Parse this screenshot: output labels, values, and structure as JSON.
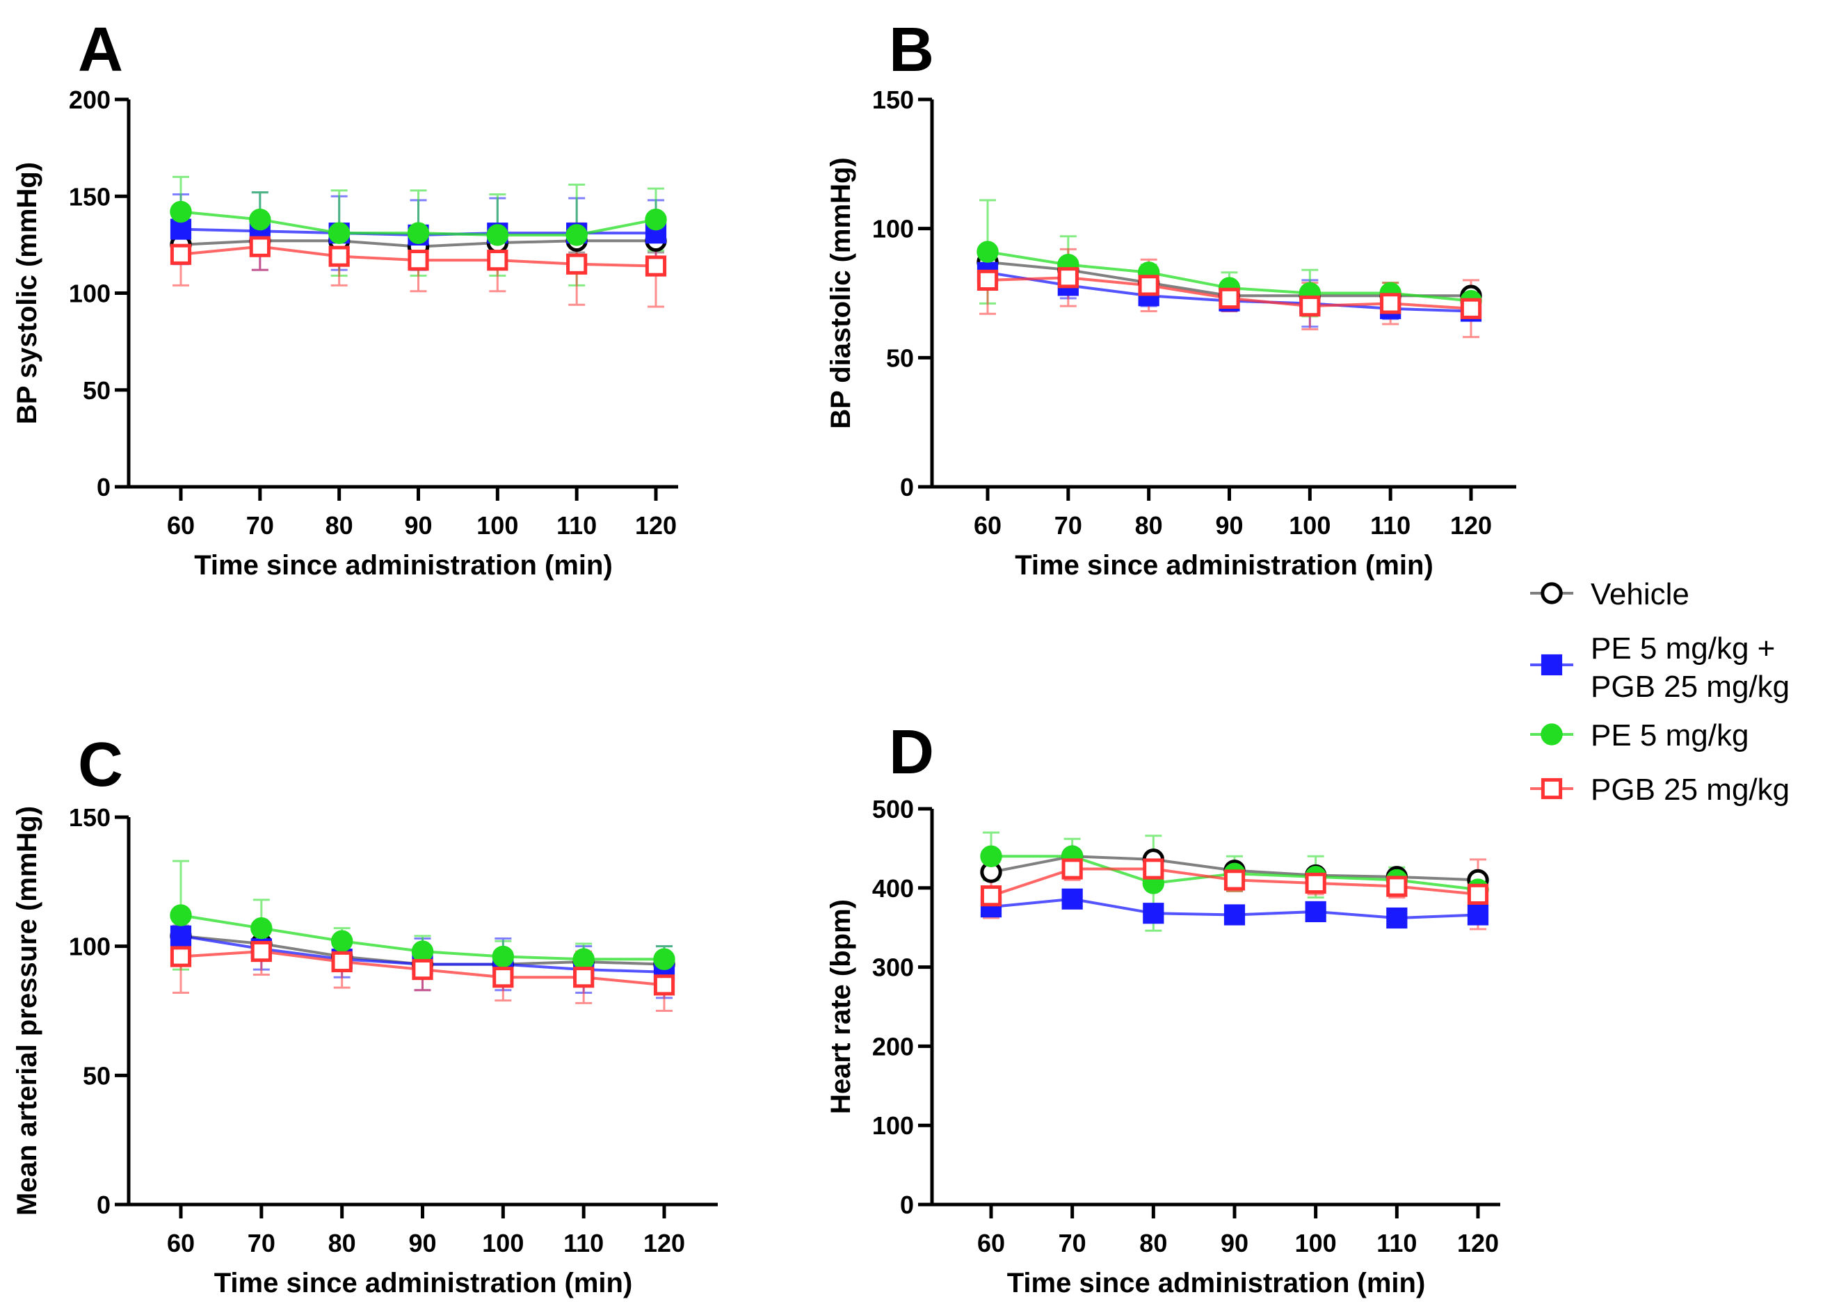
{
  "colors": {
    "vehicle": "#555555",
    "pe_pgb": "#1a1aff",
    "pe": "#22dd22",
    "pgb": "#ff3333",
    "axis": "#000000"
  },
  "legend": {
    "items": [
      {
        "key": "vehicle",
        "lines": [
          "Vehicle"
        ],
        "marker": "circle-open"
      },
      {
        "key": "pe_pgb",
        "lines": [
          "PE 5 mg/kg +",
          "PGB 25 mg/kg"
        ],
        "marker": "square-filled"
      },
      {
        "key": "pe",
        "lines": [
          "PE 5 mg/kg"
        ],
        "marker": "circle-filled"
      },
      {
        "key": "pgb",
        "lines": [
          "PGB 25 mg/kg"
        ],
        "marker": "square-open"
      }
    ]
  },
  "chart_data": [
    {
      "panel": "A",
      "type": "line",
      "xlabel": "Time since administration (min)",
      "ylabel": "BP systolic (mmHg)",
      "ylim": [
        0,
        200
      ],
      "yticks": [
        0,
        50,
        100,
        150,
        200
      ],
      "x": [
        60,
        70,
        80,
        90,
        100,
        110,
        120
      ],
      "series": [
        {
          "key": "vehicle",
          "name": "Vehicle",
          "values": [
            125,
            127,
            127,
            124,
            126,
            127,
            127
          ],
          "err": [
            7,
            6,
            6,
            6,
            6,
            6,
            6
          ]
        },
        {
          "key": "pe_pgb",
          "name": "PE 5 mg/kg + PGB 25 mg/kg",
          "values": [
            133,
            132,
            131,
            130,
            131,
            131,
            131
          ],
          "err": [
            18,
            20,
            19,
            18,
            18,
            18,
            17
          ]
        },
        {
          "key": "pe",
          "name": "PE 5 mg/kg",
          "values": [
            142,
            138,
            131,
            131,
            130,
            130,
            138
          ],
          "err": [
            18,
            14,
            22,
            22,
            21,
            26,
            16
          ]
        },
        {
          "key": "pgb",
          "name": "PGB 25 mg/kg",
          "values": [
            120,
            124,
            119,
            117,
            117,
            115,
            114
          ],
          "err": [
            16,
            12,
            15,
            16,
            16,
            21,
            21
          ]
        }
      ]
    },
    {
      "panel": "B",
      "type": "line",
      "xlabel": "Time since administration (min)",
      "ylabel": "BP diastolic (mmHg)",
      "ylim": [
        0,
        150
      ],
      "yticks": [
        0,
        50,
        100,
        150
      ],
      "x": [
        60,
        70,
        80,
        90,
        100,
        110,
        120
      ],
      "series": [
        {
          "key": "vehicle",
          "name": "Vehicle",
          "values": [
            87,
            84,
            79,
            74,
            74,
            74,
            74
          ],
          "err": [
            4,
            3,
            3,
            3,
            3,
            3,
            2
          ]
        },
        {
          "key": "pe_pgb",
          "name": "PE 5 mg/kg + PGB 25 mg/kg",
          "values": [
            83,
            78,
            74,
            72,
            71,
            69,
            68
          ],
          "err": [
            5,
            5,
            4,
            4,
            9,
            4,
            3
          ]
        },
        {
          "key": "pe",
          "name": "PE 5 mg/kg",
          "values": [
            91,
            86,
            83,
            77,
            75,
            75,
            72
          ],
          "err": [
            20,
            11,
            3,
            6,
            9,
            4,
            3
          ]
        },
        {
          "key": "pgb",
          "name": "PGB 25 mg/kg",
          "values": [
            80,
            81,
            78,
            73,
            70,
            71,
            69
          ],
          "err": [
            13,
            11,
            10,
            5,
            9,
            8,
            11
          ]
        }
      ]
    },
    {
      "panel": "C",
      "type": "line",
      "xlabel": "Time since administration (min)",
      "ylabel": "Mean arterial pressure (mmHg)",
      "ylim": [
        0,
        150
      ],
      "yticks": [
        0,
        50,
        100,
        150
      ],
      "x": [
        60,
        70,
        80,
        90,
        100,
        110,
        120
      ],
      "series": [
        {
          "key": "vehicle",
          "name": "Vehicle",
          "values": [
            104,
            101,
            96,
            93,
            93,
            94,
            93
          ],
          "err": [
            4,
            4,
            3,
            3,
            3,
            3,
            3
          ]
        },
        {
          "key": "pe_pgb",
          "name": "PE 5 mg/kg + PGB 25 mg/kg",
          "values": [
            104,
            99,
            95,
            93,
            93,
            91,
            90
          ],
          "err": [
            6,
            8,
            7,
            10,
            10,
            9,
            10
          ]
        },
        {
          "key": "pe",
          "name": "PE 5 mg/kg",
          "values": [
            112,
            107,
            102,
            98,
            96,
            95,
            95
          ],
          "err": [
            21,
            11,
            5,
            6,
            6,
            6,
            5
          ]
        },
        {
          "key": "pgb",
          "name": "PGB 25 mg/kg",
          "values": [
            96,
            98,
            94,
            91,
            88,
            88,
            85
          ],
          "err": [
            14,
            9,
            10,
            8,
            9,
            10,
            10
          ]
        }
      ]
    },
    {
      "panel": "D",
      "type": "line",
      "xlabel": "Time since administration (min)",
      "ylabel": "Heart rate (bpm)",
      "ylim": [
        0,
        500
      ],
      "yticks": [
        0,
        100,
        200,
        300,
        400,
        500
      ],
      "x": [
        60,
        70,
        80,
        90,
        100,
        110,
        120
      ],
      "series": [
        {
          "key": "vehicle",
          "name": "Vehicle",
          "values": [
            420,
            440,
            436,
            422,
            416,
            414,
            410
          ],
          "err": [
            8,
            8,
            8,
            8,
            8,
            8,
            6
          ]
        },
        {
          "key": "pe_pgb",
          "name": "PE 5 mg/kg + PGB 25 mg/kg",
          "values": [
            376,
            386,
            368,
            366,
            370,
            362,
            366
          ],
          "err": [
            8,
            6,
            8,
            6,
            6,
            6,
            6
          ]
        },
        {
          "key": "pe",
          "name": "PE 5 mg/kg",
          "values": [
            440,
            440,
            406,
            418,
            414,
            410,
            398
          ],
          "err": [
            30,
            22,
            60,
            22,
            26,
            16,
            12
          ]
        },
        {
          "key": "pgb",
          "name": "PGB 25 mg/kg",
          "values": [
            390,
            424,
            424,
            410,
            406,
            402,
            392
          ],
          "err": [
            28,
            14,
            14,
            14,
            14,
            14,
            44
          ]
        }
      ]
    }
  ]
}
